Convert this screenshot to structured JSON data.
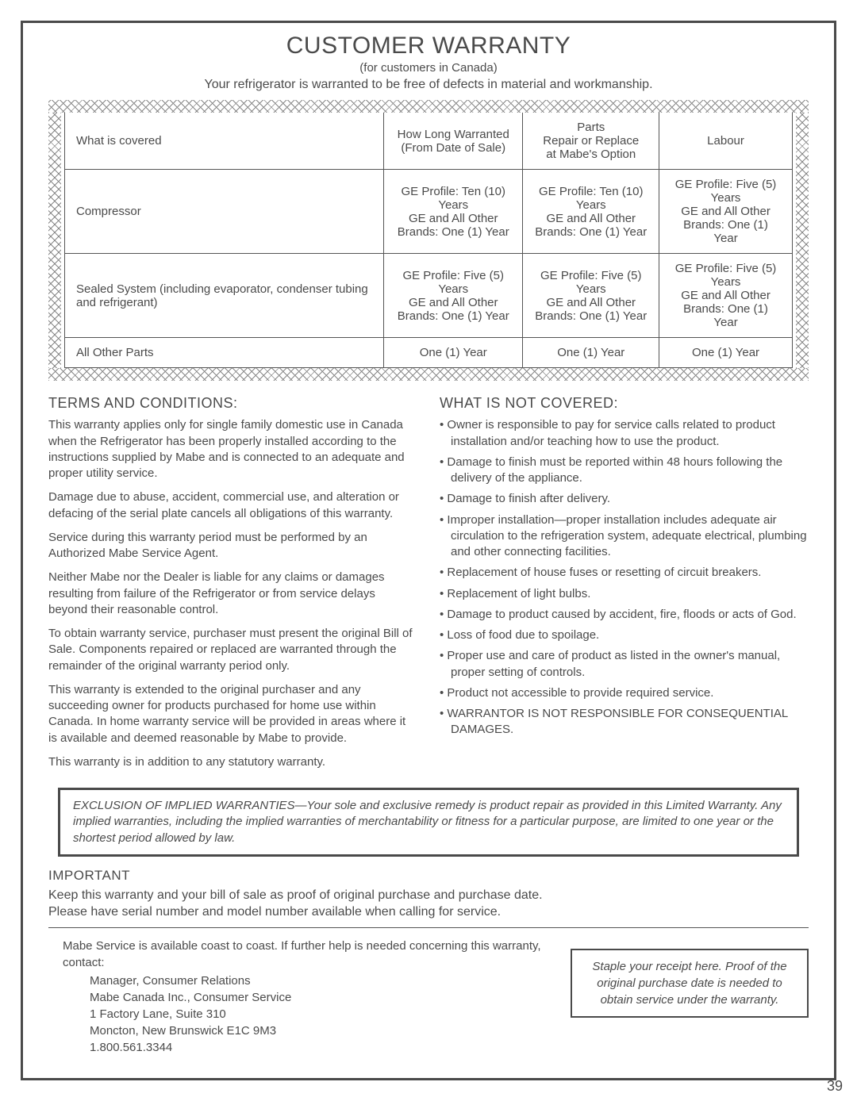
{
  "title": "CUSTOMER WARRANTY",
  "subtitle": "(for customers in Canada)",
  "subline": "Your refrigerator is warranted to be free of defects in material and workmanship.",
  "table": {
    "headers": [
      "What is covered",
      "How Long Warranted\n(From Date of Sale)",
      "Parts\nRepair or Replace\nat Mabe's Option",
      "Labour"
    ],
    "rows": [
      [
        "Compressor",
        "GE Profile: Ten (10) Years\nGE and All Other\nBrands: One (1) Year",
        "GE Profile: Ten (10) Years\nGE and All Other\nBrands: One (1) Year",
        "GE Profile: Five (5) Years\nGE and All Other\nBrands: One (1) Year"
      ],
      [
        "Sealed System (including evaporator, condenser tubing and refrigerant)",
        "GE Profile: Five (5) Years\nGE and All Other\nBrands: One (1) Year",
        "GE Profile: Five (5) Years\nGE and All Other\nBrands: One (1) Year",
        "GE Profile: Five (5) Years\nGE and All Other\nBrands: One (1) Year"
      ],
      [
        "All Other Parts",
        "One (1) Year",
        "One (1) Year",
        "One (1) Year"
      ]
    ]
  },
  "terms": {
    "heading": "TERMS AND CONDITIONS:",
    "paras": [
      "This warranty applies only for single family domestic use in Canada when the Refrigerator has been properly installed according to the instructions supplied by Mabe and is connected to an adequate and proper utility service.",
      "Damage due to abuse, accident, commercial use, and alteration or defacing of the serial plate cancels all obligations of this warranty.",
      "Service during this warranty period must be performed by an Authorized Mabe Service Agent.",
      "Neither Mabe nor the Dealer is liable for any claims or damages resulting from failure of the Refrigerator or from service delays beyond their reasonable control.",
      "To obtain warranty service, purchaser must present the original Bill of Sale. Components repaired or replaced are warranted through the remainder of the original warranty period only.",
      "This warranty is extended to the original purchaser and any succeeding owner for products purchased for home use within Canada. In home warranty service will be provided in areas where it is available and deemed reasonable by Mabe to provide.",
      "This warranty is in addition to any statutory warranty."
    ]
  },
  "notcovered": {
    "heading": "WHAT IS NOT COVERED:",
    "items": [
      "Owner is responsible to pay for service calls related to product installation and/or teaching how to use the product.",
      "Damage to finish must be reported within 48 hours following the delivery of the appliance.",
      "Damage to finish after delivery.",
      "Improper installation—proper installation includes adequate air circulation to the refrigeration system, adequate electrical, plumbing and other connecting facilities.",
      "Replacement of house fuses or resetting of circuit breakers.",
      "Replacement of light bulbs.",
      "Damage to product caused by accident, fire, floods or acts of God.",
      "Loss of food due to spoilage.",
      "Proper use and care of product as listed in the owner's manual, proper setting of controls.",
      "Product not accessible to provide required service.",
      "WARRANTOR IS NOT RESPONSIBLE FOR CONSEQUENTIAL DAMAGES."
    ]
  },
  "exclusion": "EXCLUSION OF IMPLIED WARRANTIES—Your sole and exclusive remedy is product repair as provided in this Limited Warranty. Any implied warranties, including the implied warranties of merchantability or fitness for a particular purpose, are limited to one year or the shortest period allowed by law.",
  "important": {
    "heading": "IMPORTANT",
    "l1": "Keep this warranty and your bill of sale as proof of original purchase and purchase date.",
    "l2": "Please have serial number and model number available when calling for service."
  },
  "contact": {
    "intro": "Mabe Service is available coast to coast. If further help is needed concerning this warranty, contact:",
    "lines": [
      "Manager, Consumer Relations",
      "Mabe Canada Inc., Consumer Service",
      "1 Factory Lane, Suite 310",
      "Moncton, New Brunswick E1C 9M3",
      "1.800.561.3344"
    ]
  },
  "staple": "Staple your receipt here. Proof of the original purchase date is needed to obtain service under the warranty.",
  "pagenum": "39"
}
